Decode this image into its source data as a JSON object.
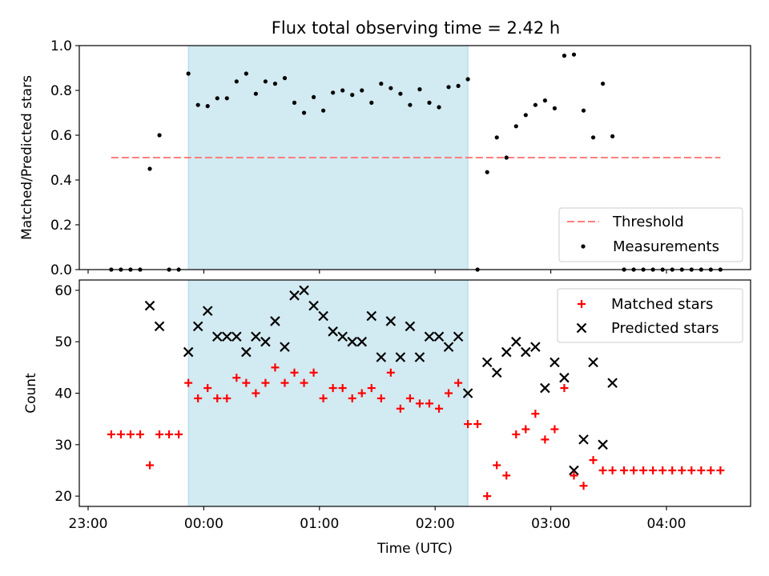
{
  "title": "Flux total observing time = 2.42 h",
  "colors": {
    "shade": "#add8e6",
    "threshold": "#ff7f7f",
    "matched": "#ff0000",
    "predicted": "#000000",
    "measurement": "#000000"
  },
  "chart_data": [
    {
      "type": "scatter",
      "panel": "top",
      "ylabel": "Matched/Predicted stars",
      "xlabel": "",
      "ylim": [
        0,
        1.0
      ],
      "yticks": [
        0.0,
        0.2,
        0.4,
        0.6,
        0.8,
        1.0
      ],
      "ytick_labels": [
        "0.0",
        "0.2",
        "0.4",
        "0.6",
        "0.8",
        "1.0"
      ],
      "legend_position": "lower-right",
      "shaded_span": [
        "23:52",
        "02:17"
      ],
      "threshold": {
        "name": "Threshold",
        "y": 0.5,
        "x": [
          "23:12",
          "04:28"
        ]
      },
      "series": [
        {
          "name": "Measurements",
          "points": [
            [
              "23:12",
              0.0
            ],
            [
              "23:17",
              0.0
            ],
            [
              "23:22",
              0.0
            ],
            [
              "23:27",
              0.0
            ],
            [
              "23:32",
              0.45
            ],
            [
              "23:37",
              0.6
            ],
            [
              "23:42",
              0.0
            ],
            [
              "23:47",
              0.0
            ],
            [
              "23:52",
              0.875
            ],
            [
              "23:57",
              0.735
            ],
            [
              "00:02",
              0.73
            ],
            [
              "00:07",
              0.765
            ],
            [
              "00:12",
              0.765
            ],
            [
              "00:17",
              0.84
            ],
            [
              "00:22",
              0.875
            ],
            [
              "00:27",
              0.785
            ],
            [
              "00:32",
              0.84
            ],
            [
              "00:37",
              0.83
            ],
            [
              "00:42",
              0.855
            ],
            [
              "00:47",
              0.745
            ],
            [
              "00:52",
              0.7
            ],
            [
              "00:57",
              0.77
            ],
            [
              "01:02",
              0.71
            ],
            [
              "01:07",
              0.79
            ],
            [
              "01:12",
              0.8
            ],
            [
              "01:17",
              0.78
            ],
            [
              "01:22",
              0.8
            ],
            [
              "01:27",
              0.745
            ],
            [
              "01:32",
              0.83
            ],
            [
              "01:37",
              0.81
            ],
            [
              "01:42",
              0.785
            ],
            [
              "01:47",
              0.735
            ],
            [
              "01:52",
              0.805
            ],
            [
              "01:57",
              0.745
            ],
            [
              "02:02",
              0.725
            ],
            [
              "02:07",
              0.815
            ],
            [
              "02:12",
              0.82
            ],
            [
              "02:17",
              0.85
            ],
            [
              "02:22",
              0.0
            ],
            [
              "02:27",
              0.435
            ],
            [
              "02:32",
              0.59
            ],
            [
              "02:37",
              0.5
            ],
            [
              "02:42",
              0.64
            ],
            [
              "02:47",
              0.69
            ],
            [
              "02:52",
              0.735
            ],
            [
              "02:57",
              0.755
            ],
            [
              "03:02",
              0.72
            ],
            [
              "03:07",
              0.955
            ],
            [
              "03:12",
              0.96
            ],
            [
              "03:17",
              0.71
            ],
            [
              "03:22",
              0.59
            ],
            [
              "03:27",
              0.83
            ],
            [
              "03:32",
              0.595
            ],
            [
              "03:38",
              0.0
            ],
            [
              "03:43",
              0.0
            ],
            [
              "03:48",
              0.0
            ],
            [
              "03:53",
              0.0
            ],
            [
              "03:58",
              0.0
            ],
            [
              "04:03",
              0.0
            ],
            [
              "04:08",
              0.0
            ],
            [
              "04:13",
              0.0
            ],
            [
              "04:18",
              0.0
            ],
            [
              "04:23",
              0.0
            ],
            [
              "04:28",
              0.0
            ]
          ]
        }
      ]
    },
    {
      "type": "scatter",
      "panel": "bottom",
      "ylabel": "Count",
      "xlabel": "Time (UTC)",
      "ylim": [
        18,
        62
      ],
      "yticks": [
        20,
        30,
        40,
        50,
        60
      ],
      "ytick_labels": [
        "20",
        "30",
        "40",
        "50",
        "60"
      ],
      "xticks": [
        "23:00",
        "00:00",
        "01:00",
        "02:00",
        "03:00",
        "04:00"
      ],
      "xtick_labels": [
        "23:00",
        "00:00",
        "01:00",
        "02:00",
        "03:00",
        "04:00"
      ],
      "legend_position": "upper-right",
      "shaded_span": [
        "23:52",
        "02:17"
      ],
      "series": [
        {
          "name": "Matched stars",
          "marker": "plus",
          "points": [
            [
              "23:12",
              32
            ],
            [
              "23:17",
              32
            ],
            [
              "23:22",
              32
            ],
            [
              "23:27",
              32
            ],
            [
              "23:32",
              26
            ],
            [
              "23:37",
              32
            ],
            [
              "23:42",
              32
            ],
            [
              "23:47",
              32
            ],
            [
              "23:52",
              42
            ],
            [
              "23:57",
              39
            ],
            [
              "00:02",
              41
            ],
            [
              "00:07",
              39
            ],
            [
              "00:12",
              39
            ],
            [
              "00:17",
              43
            ],
            [
              "00:22",
              42
            ],
            [
              "00:27",
              40
            ],
            [
              "00:32",
              42
            ],
            [
              "00:37",
              45
            ],
            [
              "00:42",
              42
            ],
            [
              "00:47",
              44
            ],
            [
              "00:52",
              42
            ],
            [
              "00:57",
              44
            ],
            [
              "01:02",
              39
            ],
            [
              "01:07",
              41
            ],
            [
              "01:12",
              41
            ],
            [
              "01:17",
              39
            ],
            [
              "01:22",
              40
            ],
            [
              "01:27",
              41
            ],
            [
              "01:32",
              39
            ],
            [
              "01:37",
              44
            ],
            [
              "01:42",
              37
            ],
            [
              "01:47",
              39
            ],
            [
              "01:52",
              38
            ],
            [
              "01:57",
              38
            ],
            [
              "02:02",
              37
            ],
            [
              "02:07",
              40
            ],
            [
              "02:12",
              42
            ],
            [
              "02:17",
              34
            ],
            [
              "02:22",
              34
            ],
            [
              "02:27",
              20
            ],
            [
              "02:32",
              26
            ],
            [
              "02:37",
              24
            ],
            [
              "02:42",
              32
            ],
            [
              "02:47",
              33
            ],
            [
              "02:52",
              36
            ],
            [
              "02:57",
              31
            ],
            [
              "03:02",
              33
            ],
            [
              "03:07",
              41
            ],
            [
              "03:12",
              24
            ],
            [
              "03:17",
              22
            ],
            [
              "03:22",
              27
            ],
            [
              "03:27",
              25
            ],
            [
              "03:32",
              25
            ],
            [
              "03:38",
              25
            ],
            [
              "03:43",
              25
            ],
            [
              "03:48",
              25
            ],
            [
              "03:53",
              25
            ],
            [
              "03:58",
              25
            ],
            [
              "04:03",
              25
            ],
            [
              "04:08",
              25
            ],
            [
              "04:13",
              25
            ],
            [
              "04:18",
              25
            ],
            [
              "04:23",
              25
            ],
            [
              "04:28",
              25
            ]
          ]
        },
        {
          "name": "Predicted stars",
          "marker": "x",
          "points": [
            [
              "23:32",
              57
            ],
            [
              "23:37",
              53
            ],
            [
              "23:52",
              48
            ],
            [
              "23:57",
              53
            ],
            [
              "00:02",
              56
            ],
            [
              "00:07",
              51
            ],
            [
              "00:12",
              51
            ],
            [
              "00:17",
              51
            ],
            [
              "00:22",
              48
            ],
            [
              "00:27",
              51
            ],
            [
              "00:32",
              50
            ],
            [
              "00:37",
              54
            ],
            [
              "00:42",
              49
            ],
            [
              "00:47",
              59
            ],
            [
              "00:52",
              60
            ],
            [
              "00:57",
              57
            ],
            [
              "01:02",
              55
            ],
            [
              "01:07",
              52
            ],
            [
              "01:12",
              51
            ],
            [
              "01:17",
              50
            ],
            [
              "01:22",
              50
            ],
            [
              "01:27",
              55
            ],
            [
              "01:32",
              47
            ],
            [
              "01:37",
              54
            ],
            [
              "01:42",
              47
            ],
            [
              "01:47",
              53
            ],
            [
              "01:52",
              47
            ],
            [
              "01:57",
              51
            ],
            [
              "02:02",
              51
            ],
            [
              "02:07",
              49
            ],
            [
              "02:12",
              51
            ],
            [
              "02:17",
              40
            ],
            [
              "02:27",
              46
            ],
            [
              "02:32",
              44
            ],
            [
              "02:37",
              48
            ],
            [
              "02:42",
              50
            ],
            [
              "02:47",
              48
            ],
            [
              "02:52",
              49
            ],
            [
              "02:57",
              41
            ],
            [
              "03:02",
              46
            ],
            [
              "03:07",
              43
            ],
            [
              "03:12",
              25
            ],
            [
              "03:17",
              31
            ],
            [
              "03:22",
              46
            ],
            [
              "03:27",
              30
            ],
            [
              "03:32",
              42
            ]
          ]
        }
      ]
    }
  ]
}
